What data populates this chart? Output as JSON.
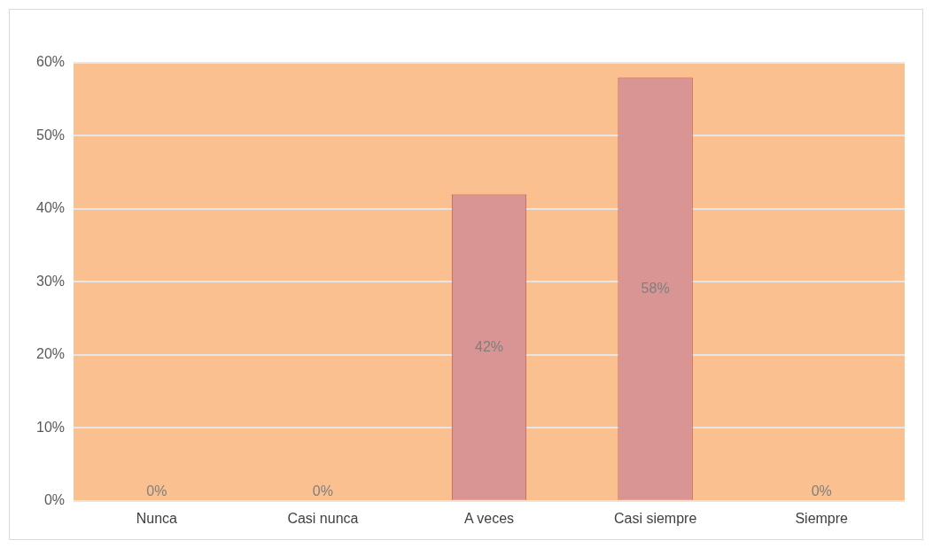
{
  "chart_data": {
    "type": "bar",
    "categories": [
      "Nunca",
      "Casi nunca",
      "A veces",
      "Casi siempre",
      "Siempre"
    ],
    "values": [
      0,
      0,
      42,
      58,
      0
    ],
    "color": "#d99594",
    "value_labels": [
      "0%",
      "0%",
      "42%",
      "58%",
      "0%"
    ],
    "ylim": [
      0,
      60
    ],
    "yticks": [
      {
        "value": 0,
        "label": "0%"
      },
      {
        "value": 10,
        "label": "10%"
      },
      {
        "value": 20,
        "label": "20%"
      },
      {
        "value": 30,
        "label": "30%"
      },
      {
        "value": 40,
        "label": "40%"
      },
      {
        "value": 50,
        "label": "50%"
      },
      {
        "value": 60,
        "label": "60%"
      }
    ],
    "grid": "y",
    "legend": false
  }
}
